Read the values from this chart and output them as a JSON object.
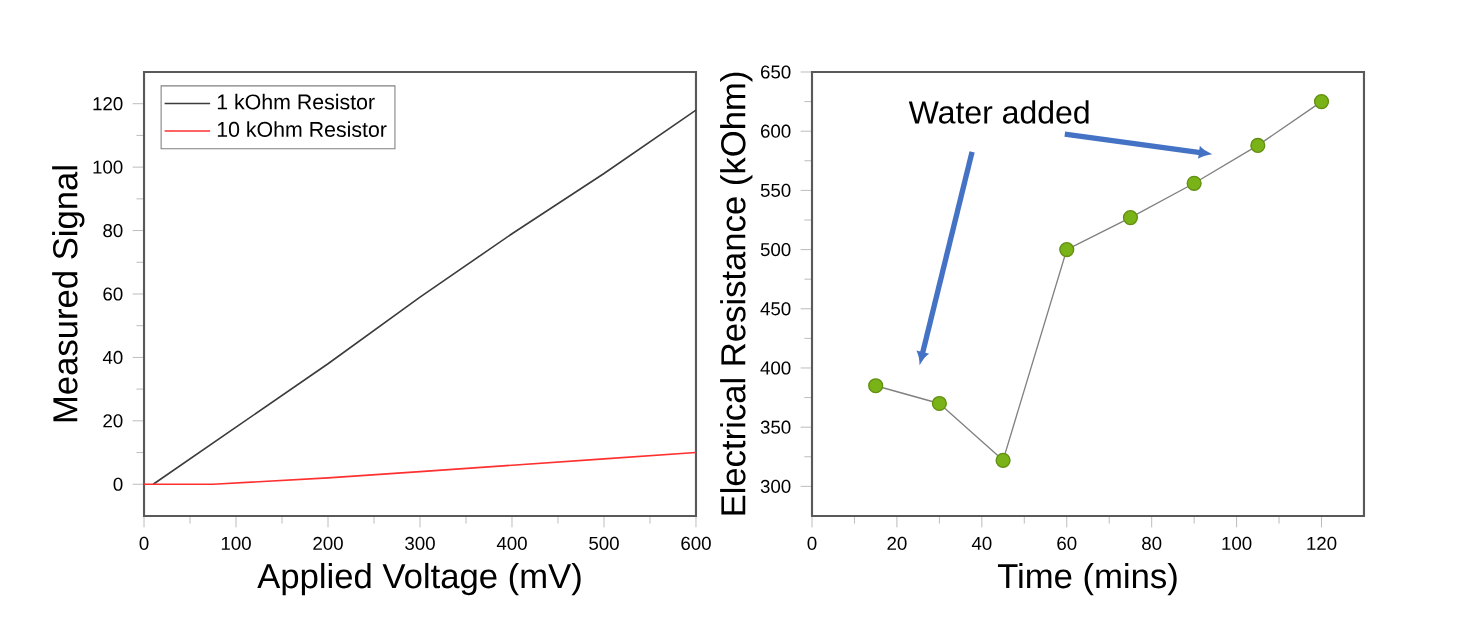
{
  "chart_data": [
    {
      "type": "line",
      "xlabel": "Applied Voltage (mV)",
      "ylabel": "Measured Signal",
      "xlim": [
        0,
        600
      ],
      "ylim": [
        -10,
        130
      ],
      "xticks": [
        0,
        100,
        200,
        300,
        400,
        500,
        600
      ],
      "yticks": [
        0,
        20,
        40,
        60,
        80,
        100,
        120
      ],
      "legend": "top left",
      "marker": "none",
      "series": [
        {
          "name": "1 kOhm Resistor",
          "color": "#3c3c3c",
          "x": [
            10,
            100,
            200,
            300,
            400,
            500,
            600
          ],
          "values": [
            0,
            18,
            38,
            59,
            79,
            98,
            118
          ]
        },
        {
          "name": "10 kOhm Resistor",
          "color": "#ff3030",
          "x": [
            0,
            75,
            200,
            300,
            400,
            500,
            600
          ],
          "values": [
            0,
            0,
            2,
            4,
            6,
            8,
            10
          ]
        }
      ]
    },
    {
      "type": "line",
      "xlabel": "Time (mins)",
      "ylabel": "Electrical Resistance (kOhm)",
      "xlim": [
        0,
        130
      ],
      "ylim": [
        275,
        650
      ],
      "xticks": [
        0,
        20,
        40,
        60,
        80,
        100,
        120
      ],
      "yticks": [
        300,
        350,
        400,
        450,
        500,
        550,
        600,
        650
      ],
      "marker": "circle",
      "annotations": [
        "Water added"
      ],
      "series": [
        {
          "color": "#7ab317",
          "x": [
            15,
            30,
            45,
            60,
            75,
            90,
            105,
            120
          ],
          "values": [
            385,
            370,
            322,
            500,
            527,
            556,
            588,
            625
          ]
        }
      ]
    }
  ]
}
